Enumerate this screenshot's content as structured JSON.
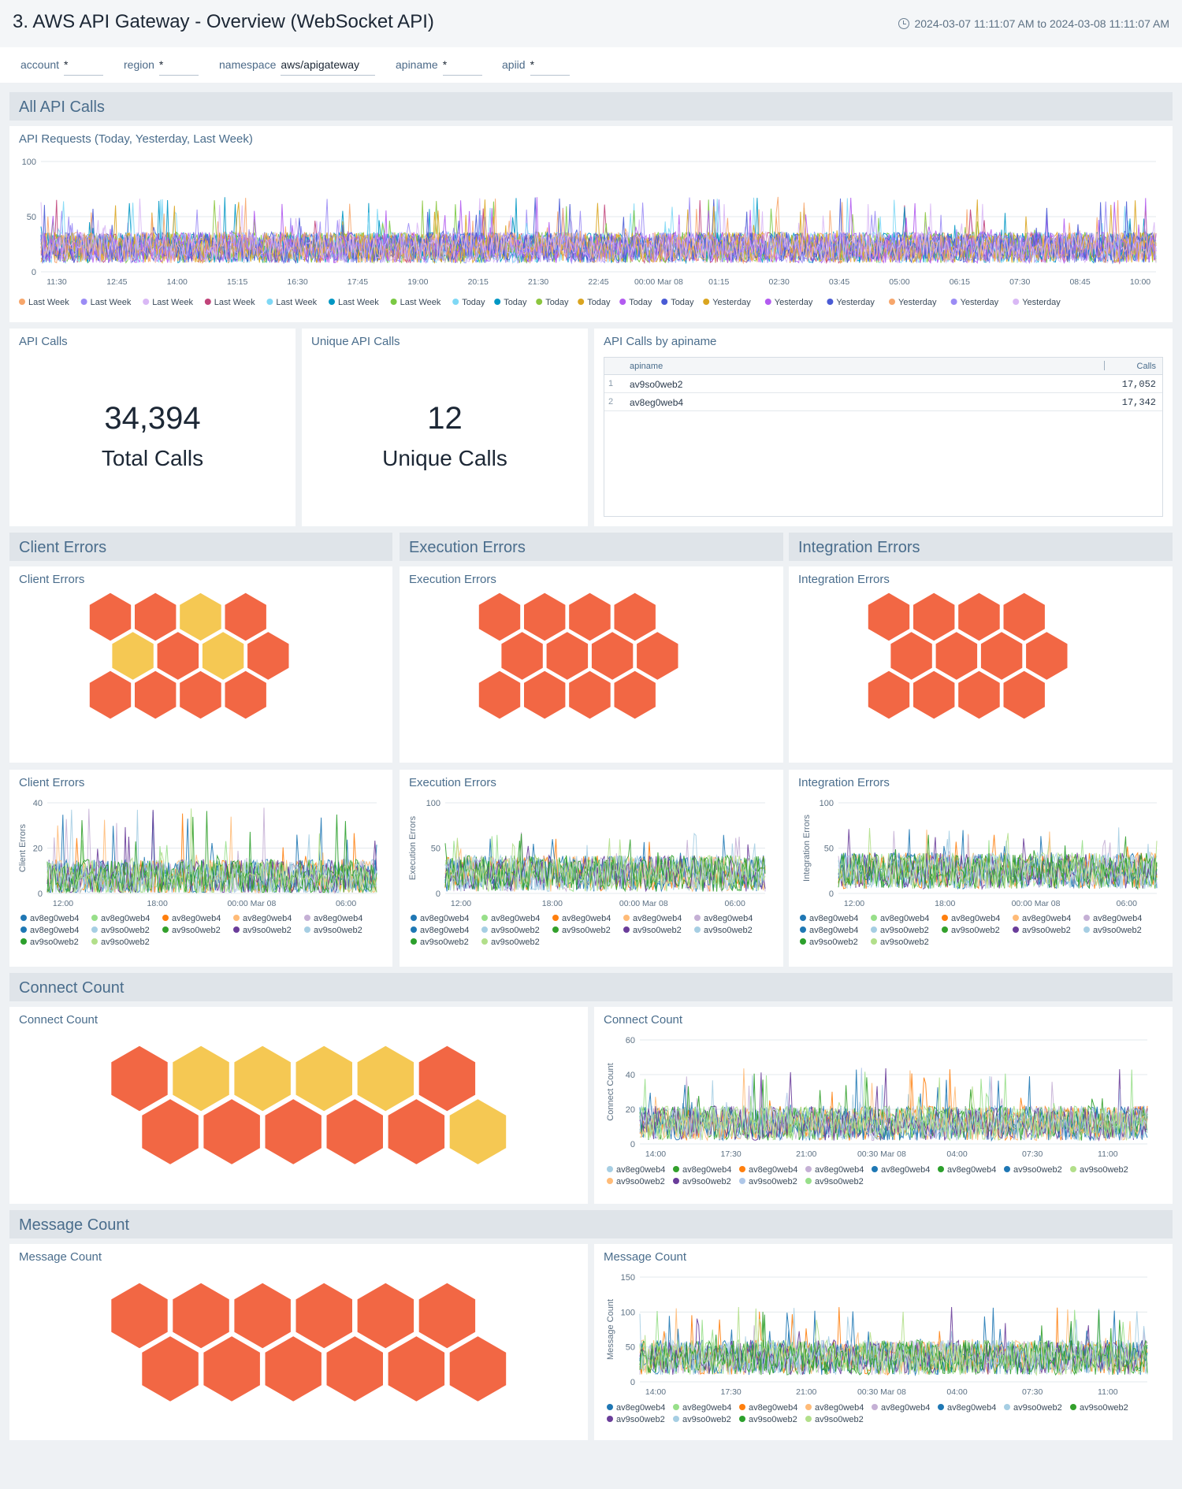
{
  "header": {
    "title": "3. AWS API Gateway - Overview (WebSocket API)",
    "time_range": "2024-03-07 11:11:07 AM to 2024-03-08 11:11:07 AM"
  },
  "filters": [
    {
      "label": "account",
      "value": "*"
    },
    {
      "label": "region",
      "value": "*"
    },
    {
      "label": "namespace",
      "value": "aws/apigateway"
    },
    {
      "label": "apiname",
      "value": "*"
    },
    {
      "label": "apiid",
      "value": "*"
    }
  ],
  "sections": {
    "all_calls": "All API Calls",
    "client_errors": "Client Errors",
    "execution_errors": "Execution Errors",
    "integration_errors": "Integration Errors",
    "connect_count": "Connect Count",
    "message_count": "Message Count"
  },
  "panels": {
    "api_requests_title": "API Requests (Today, Yesterday, Last Week)",
    "api_calls_title": "API Calls",
    "api_calls_value": "34,394",
    "api_calls_unit": "Total Calls",
    "unique_title": "Unique API Calls",
    "unique_value": "12",
    "unique_unit": "Unique Calls",
    "by_apiname_title": "API Calls by apiname",
    "client_honey_title": "Client Errors",
    "exec_honey_title": "Execution Errors",
    "integ_honey_title": "Integration Errors",
    "client_chart_title": "Client Errors",
    "exec_chart_title": "Execution Errors",
    "integ_chart_title": "Integration Errors",
    "connect_honey_title": "Connect Count",
    "connect_chart_title": "Connect Count",
    "message_honey_title": "Message Count",
    "message_chart_title": "Message Count"
  },
  "table": {
    "columns": [
      "apiname",
      "Calls"
    ],
    "rows": [
      {
        "idx": "1",
        "apiname": "av9so0web2",
        "calls": "17,052"
      },
      {
        "idx": "2",
        "apiname": "av8eg0web4",
        "calls": "17,342"
      }
    ]
  },
  "colors": {
    "honey_red": "#f26744",
    "honey_yellow": "#f5c853",
    "palette": [
      "#1f77b4",
      "#aec7e8",
      "#ff7f0e",
      "#ffbb78",
      "#2ca02c",
      "#98df8a",
      "#c5b0d5",
      "#6a3d9a",
      "#a6cee3",
      "#b2df8a",
      "#33a02c",
      "#0097c4",
      "#7ad151",
      "#4a5bd5",
      "#b35bf0",
      "#daa520",
      "#9b8cf5",
      "#d9b8f5",
      "#c1447a",
      "#7fd8f5"
    ]
  },
  "honeycombs": {
    "client": [
      "red",
      "red",
      "yellow",
      "red",
      "yellow",
      "red",
      "yellow",
      "red",
      "red",
      "red",
      "red",
      "red"
    ],
    "execution": [
      "red",
      "red",
      "red",
      "red",
      "red",
      "red",
      "red",
      "red",
      "red",
      "red",
      "red",
      "red"
    ],
    "integration": [
      "red",
      "red",
      "red",
      "red",
      "red",
      "red",
      "red",
      "red",
      "red",
      "red",
      "red",
      "red"
    ],
    "connect": [
      "red",
      "yellow",
      "yellow",
      "yellow",
      "yellow",
      "red",
      "red",
      "red",
      "red",
      "red",
      "red",
      "yellow"
    ],
    "message": [
      "red",
      "red",
      "red",
      "red",
      "red",
      "red",
      "red",
      "red",
      "red",
      "red",
      "red",
      "red"
    ]
  },
  "chart_data": [
    {
      "id": "api_requests",
      "type": "line",
      "title": "API Requests (Today, Yesterday, Last Week)",
      "ylabel": "",
      "ylim": [
        0,
        100
      ],
      "yticks": [
        "0",
        "50",
        "100"
      ],
      "xticks": [
        "11:30",
        "12:45",
        "14:00",
        "15:15",
        "16:30",
        "17:45",
        "19:00",
        "20:15",
        "21:30",
        "22:45",
        "00:00 Mar 08",
        "01:15",
        "02:30",
        "03:45",
        "05:00",
        "06:15",
        "07:30",
        "08:45",
        "10:00"
      ],
      "series": [
        {
          "name": "Last Week",
          "color": "#f7a66b"
        },
        {
          "name": "Last Week",
          "color": "#9b8cf5"
        },
        {
          "name": "Last Week",
          "color": "#d9b8f5"
        },
        {
          "name": "Last Week",
          "color": "#c1447a"
        },
        {
          "name": "Last Week",
          "color": "#7fd8f5"
        },
        {
          "name": "Last Week",
          "color": "#0097c4"
        },
        {
          "name": "Last Week",
          "color": "#7ac943"
        },
        {
          "name": "Today",
          "color": "#7fd8f5"
        },
        {
          "name": "Today",
          "color": "#0097c4"
        },
        {
          "name": "Today",
          "color": "#8cc63f"
        },
        {
          "name": "Today",
          "color": "#daa520"
        },
        {
          "name": "Today",
          "color": "#b35bf0"
        },
        {
          "name": "Today",
          "color": "#4a5bd5"
        },
        {
          "name": "Yesterday",
          "color": "#daa520"
        },
        {
          "name": "Yesterday",
          "color": "#b35bf0"
        },
        {
          "name": "Yesterday",
          "color": "#4a5bd5"
        },
        {
          "name": "Yesterday",
          "color": "#f7a66b"
        },
        {
          "name": "Yesterday",
          "color": "#9b8cf5"
        },
        {
          "name": "Yesterday",
          "color": "#d9b8f5"
        }
      ],
      "baseline": 22,
      "spread": 14,
      "peak": 68
    },
    {
      "id": "client_errors",
      "type": "line",
      "title": "Client Errors",
      "ylabel": "Client Errors",
      "ylim": [
        0,
        40
      ],
      "yticks": [
        "0",
        "20",
        "40"
      ],
      "xticks": [
        "12:00",
        "18:00",
        "00:00 Mar 08",
        "06:00"
      ],
      "series": [
        {
          "name": "av8eg0web4",
          "color": "#1f77b4"
        },
        {
          "name": "av8eg0web4",
          "color": "#98df8a"
        },
        {
          "name": "av8eg0web4",
          "color": "#ff7f0e"
        },
        {
          "name": "av8eg0web4",
          "color": "#ffbb78"
        },
        {
          "name": "av8eg0web4",
          "color": "#c5b0d5"
        },
        {
          "name": "av8eg0web4",
          "color": "#1f78b4"
        },
        {
          "name": "av9so0web2",
          "color": "#a6cee3"
        },
        {
          "name": "av9so0web2",
          "color": "#33a02c"
        },
        {
          "name": "av9so0web2",
          "color": "#6a3d9a"
        },
        {
          "name": "av9so0web2",
          "color": "#a6cee3"
        },
        {
          "name": "av9so0web2",
          "color": "#2ca02c"
        },
        {
          "name": "av9so0web2",
          "color": "#b2df8a"
        }
      ],
      "baseline": 7,
      "spread": 8,
      "peak": 38
    },
    {
      "id": "execution_errors",
      "type": "line",
      "title": "Execution Errors",
      "ylabel": "Execution Errors",
      "ylim": [
        0,
        100
      ],
      "yticks": [
        "0",
        "50",
        "100"
      ],
      "xticks": [
        "12:00",
        "18:00",
        "00:00 Mar 08",
        "06:00"
      ],
      "series": [
        {
          "name": "av8eg0web4",
          "color": "#1f77b4"
        },
        {
          "name": "av8eg0web4",
          "color": "#98df8a"
        },
        {
          "name": "av8eg0web4",
          "color": "#ff7f0e"
        },
        {
          "name": "av8eg0web4",
          "color": "#ffbb78"
        },
        {
          "name": "av8eg0web4",
          "color": "#c5b0d5"
        },
        {
          "name": "av8eg0web4",
          "color": "#1f78b4"
        },
        {
          "name": "av9so0web2",
          "color": "#a6cee3"
        },
        {
          "name": "av9so0web2",
          "color": "#33a02c"
        },
        {
          "name": "av9so0web2",
          "color": "#6a3d9a"
        },
        {
          "name": "av9so0web2",
          "color": "#a6cee3"
        },
        {
          "name": "av9so0web2",
          "color": "#2ca02c"
        },
        {
          "name": "av9so0web2",
          "color": "#b2df8a"
        }
      ],
      "baseline": 22,
      "spread": 20,
      "peak": 68
    },
    {
      "id": "integration_errors",
      "type": "line",
      "title": "Integration Errors",
      "ylabel": "Integration Errors",
      "ylim": [
        0,
        100
      ],
      "yticks": [
        "0",
        "50",
        "100"
      ],
      "xticks": [
        "12:00",
        "18:00",
        "00:00 Mar 08",
        "06:00"
      ],
      "series": [
        {
          "name": "av8eg0web4",
          "color": "#1f77b4"
        },
        {
          "name": "av8eg0web4",
          "color": "#98df8a"
        },
        {
          "name": "av8eg0web4",
          "color": "#ff7f0e"
        },
        {
          "name": "av8eg0web4",
          "color": "#ffbb78"
        },
        {
          "name": "av8eg0web4",
          "color": "#c5b0d5"
        },
        {
          "name": "av8eg0web4",
          "color": "#1f78b4"
        },
        {
          "name": "av9so0web2",
          "color": "#a6cee3"
        },
        {
          "name": "av9so0web2",
          "color": "#33a02c"
        },
        {
          "name": "av9so0web2",
          "color": "#6a3d9a"
        },
        {
          "name": "av9so0web2",
          "color": "#a6cee3"
        },
        {
          "name": "av9so0web2",
          "color": "#2ca02c"
        },
        {
          "name": "av9so0web2",
          "color": "#b2df8a"
        }
      ],
      "baseline": 25,
      "spread": 20,
      "peak": 74
    },
    {
      "id": "connect_count",
      "type": "line",
      "title": "Connect Count",
      "ylabel": "Connect Count",
      "ylim": [
        0,
        60
      ],
      "yticks": [
        "0",
        "20",
        "40",
        "60"
      ],
      "xticks": [
        "14:00",
        "17:30",
        "21:00",
        "00:30 Mar 08",
        "04:00",
        "07:30",
        "11:00"
      ],
      "series": [
        {
          "name": "av8eg0web4",
          "color": "#a6cee3"
        },
        {
          "name": "av8eg0web4",
          "color": "#33a02c"
        },
        {
          "name": "av8eg0web4",
          "color": "#ff7f0e"
        },
        {
          "name": "av8eg0web4",
          "color": "#c5b0d5"
        },
        {
          "name": "av8eg0web4",
          "color": "#1f78b4"
        },
        {
          "name": "av8eg0web4",
          "color": "#2ca02c"
        },
        {
          "name": "av9so0web2",
          "color": "#1f77b4"
        },
        {
          "name": "av9so0web2",
          "color": "#b2df8a"
        },
        {
          "name": "av9so0web2",
          "color": "#ffbb78"
        },
        {
          "name": "av9so0web2",
          "color": "#6a3d9a"
        },
        {
          "name": "av9so0web2",
          "color": "#aec7e8"
        },
        {
          "name": "av9so0web2",
          "color": "#98df8a"
        }
      ],
      "baseline": 12,
      "spread": 10,
      "peak": 44
    },
    {
      "id": "message_count",
      "type": "line",
      "title": "Message Count",
      "ylabel": "Message Count",
      "ylim": [
        0,
        150
      ],
      "yticks": [
        "0",
        "50",
        "100",
        "150"
      ],
      "xticks": [
        "14:00",
        "17:30",
        "21:00",
        "00:30 Mar 08",
        "04:00",
        "07:30",
        "11:00"
      ],
      "series": [
        {
          "name": "av8eg0web4",
          "color": "#1f77b4"
        },
        {
          "name": "av8eg0web4",
          "color": "#98df8a"
        },
        {
          "name": "av8eg0web4",
          "color": "#ff7f0e"
        },
        {
          "name": "av8eg0web4",
          "color": "#ffbb78"
        },
        {
          "name": "av8eg0web4",
          "color": "#c5b0d5"
        },
        {
          "name": "av8eg0web4",
          "color": "#1f78b4"
        },
        {
          "name": "av9so0web2",
          "color": "#a6cee3"
        },
        {
          "name": "av9so0web2",
          "color": "#33a02c"
        },
        {
          "name": "av9so0web2",
          "color": "#6a3d9a"
        },
        {
          "name": "av9so0web2",
          "color": "#a6cee3"
        },
        {
          "name": "av9so0web2",
          "color": "#2ca02c"
        },
        {
          "name": "av9so0web2",
          "color": "#b2df8a"
        }
      ],
      "baseline": 35,
      "spread": 25,
      "peak": 108
    }
  ]
}
